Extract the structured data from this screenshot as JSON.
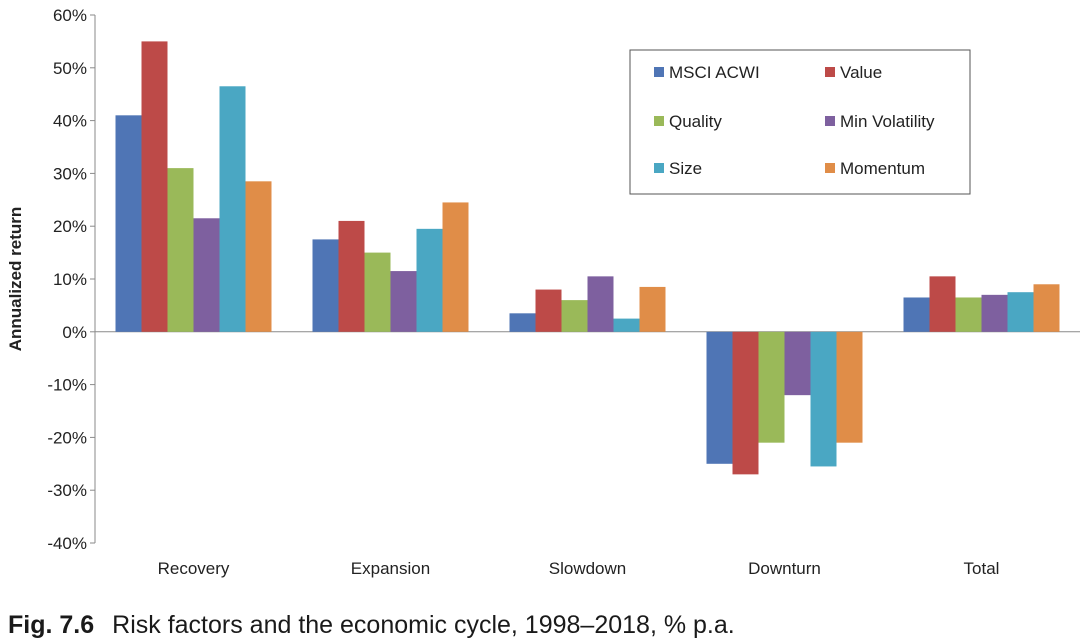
{
  "chart_data": {
    "type": "bar",
    "ylabel": "Annualized return",
    "xlabel": "",
    "categories": [
      "Recovery",
      "Expansion",
      "Slowdown",
      "Downturn",
      "Total"
    ],
    "ylim": [
      -40,
      60
    ],
    "ytick_step": 10,
    "ytick_labels": [
      "60%",
      "50%",
      "40%",
      "30%",
      "20%",
      "10%",
      "0%",
      "-10%",
      "-20%",
      "-30%",
      "-40%"
    ],
    "legend_position": "top-right",
    "grid": false,
    "series": [
      {
        "name": "MSCI ACWI",
        "color": "#4f75b5",
        "values": [
          41,
          17.5,
          3.5,
          -25,
          6.5
        ]
      },
      {
        "name": "Value",
        "color": "#bd4a48",
        "values": [
          55,
          21,
          8,
          -27,
          10.5
        ]
      },
      {
        "name": "Quality",
        "color": "#9ab959",
        "values": [
          31,
          15,
          6,
          -21,
          6.5
        ]
      },
      {
        "name": "Min Volatility",
        "color": "#7e609f",
        "values": [
          21.5,
          11.5,
          10.5,
          -12,
          7
        ]
      },
      {
        "name": "Size",
        "color": "#4aa7c3",
        "values": [
          46.5,
          19.5,
          2.5,
          -25.5,
          7.5
        ]
      },
      {
        "name": "Momentum",
        "color": "#e08d48",
        "values": [
          28.5,
          24.5,
          8.5,
          -21,
          9
        ]
      }
    ]
  },
  "caption": {
    "figure_number": "Fig. 7.6",
    "text": "Risk factors and the economic cycle, 1998–2018, % p.a."
  }
}
